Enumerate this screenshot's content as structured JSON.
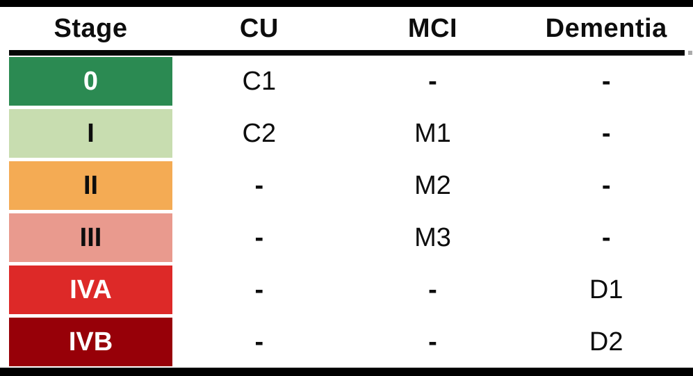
{
  "figure": {
    "columns": [
      "Stage",
      "CU",
      "MCI",
      "Dementia"
    ],
    "rows": [
      {
        "stage": "0",
        "cu": "C1",
        "mci": "-",
        "dementia": "-",
        "stage_bg": "#2b8a52",
        "stage_fg": "#ffffff"
      },
      {
        "stage": "I",
        "cu": "C2",
        "mci": "M1",
        "dementia": "-",
        "stage_bg": "#c8ddb0",
        "stage_fg": "#0d0d0d"
      },
      {
        "stage": "II",
        "cu": "-",
        "mci": "M2",
        "dementia": "-",
        "stage_bg": "#f4ab54",
        "stage_fg": "#0d0d0d"
      },
      {
        "stage": "III",
        "cu": "-",
        "mci": "M3",
        "dementia": "-",
        "stage_bg": "#e99a8e",
        "stage_fg": "#0d0d0d"
      },
      {
        "stage": "IVA",
        "cu": "-",
        "mci": "-",
        "dementia": "D1",
        "stage_bg": "#dd2928",
        "stage_fg": "#ffffff"
      },
      {
        "stage": "IVB",
        "cu": "-",
        "mci": "-",
        "dementia": "D2",
        "stage_bg": "#970008",
        "stage_fg": "#ffffff"
      }
    ],
    "colors": {
      "frame": "#000000",
      "rule": "#060606",
      "text": "#0d0d0d"
    }
  }
}
